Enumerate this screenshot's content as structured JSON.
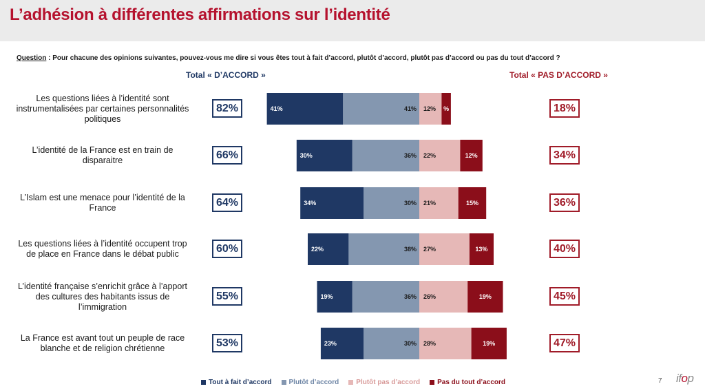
{
  "title": "L’adhésion à différentes affirmations sur l’identité",
  "question": {
    "label": "Question",
    "text": " :  Pour chacune des opinions suivantes, pouvez-vous me dire si vous êtes tout à fait d’accord, plutôt d’accord, plutôt pas d’accord ou pas du tout d’accord ?"
  },
  "total_agree_header": "Total « D’ACCORD »",
  "total_disagree_header": "Total  « PAS D’ACCORD »",
  "page_number": "7",
  "logo": {
    "prefix": "if",
    "accent": "o",
    "suffix": "p"
  },
  "colors": {
    "tout_a_fait": "#1f3864",
    "plutot": "#8497b0",
    "plutot_pas": "#e6b8b7",
    "pas_du_tout": "#8b0e1a",
    "title": "#b5122e"
  },
  "chart_data": {
    "type": "bar",
    "orientation": "horizontal-diverging-stacked",
    "title": "",
    "categories": [
      "Les questions liées à l’identité sont instrumentalisées par certaines personnalités politiques",
      "L’identité de la France est en train de disparaitre",
      "L’Islam est une menace pour l’identité de la France",
      "Les questions liées à l’identité occupent trop de place en France dans le débat public",
      "L’identité française s’enrichit grâce à l’apport des cultures des habitants issus de l’immigration",
      "La France est avant tout un peuple de race blanche et de religion chrétienne"
    ],
    "category_lines": [
      [
        "Les questions liées à l’identité sont",
        "instrumentalisées par certaines personnalités",
        "politiques"
      ],
      [
        "L’identité de la France est en train de",
        "disparaitre"
      ],
      [
        "L’Islam est une menace pour l’identité de la",
        "France"
      ],
      [
        "Les questions liées à l’identité occupent trop",
        "de place en France dans le débat public"
      ],
      [
        "L’identité française s’enrichit grâce à l’apport",
        "des cultures des habitants issus de",
        "l’immigration"
      ],
      [
        "La France est avant tout un peuple de race",
        "blanche et de religion chrétienne"
      ]
    ],
    "series": [
      {
        "name": "Tout à fait d’accord",
        "values": [
          41,
          30,
          34,
          22,
          19,
          23
        ]
      },
      {
        "name": "Plutôt d’accord",
        "values": [
          41,
          36,
          30,
          38,
          36,
          30
        ]
      },
      {
        "name": "Plutôt pas d’accord",
        "values": [
          12,
          22,
          21,
          27,
          26,
          28
        ]
      },
      {
        "name": "Pas du tout d’accord",
        "values": [
          5,
          12,
          15,
          13,
          19,
          19
        ]
      }
    ],
    "value_labels": [
      [
        "41%",
        "41%",
        "12%",
        "%"
      ],
      [
        "30%",
        "36%",
        "22%",
        "12%"
      ],
      [
        "34%",
        "30%",
        "21%",
        "15%"
      ],
      [
        "22%",
        "38%",
        "27%",
        "13%"
      ],
      [
        "19%",
        "36%",
        "26%",
        "19%"
      ],
      [
        "23%",
        "30%",
        "28%",
        "19%"
      ]
    ],
    "total_agree": [
      "82%",
      "66%",
      "64%",
      "60%",
      "55%",
      "53%"
    ],
    "total_disagree": [
      "18%",
      "34%",
      "36%",
      "40%",
      "45%",
      "47%"
    ],
    "legend_position": "bottom",
    "grid": false
  }
}
